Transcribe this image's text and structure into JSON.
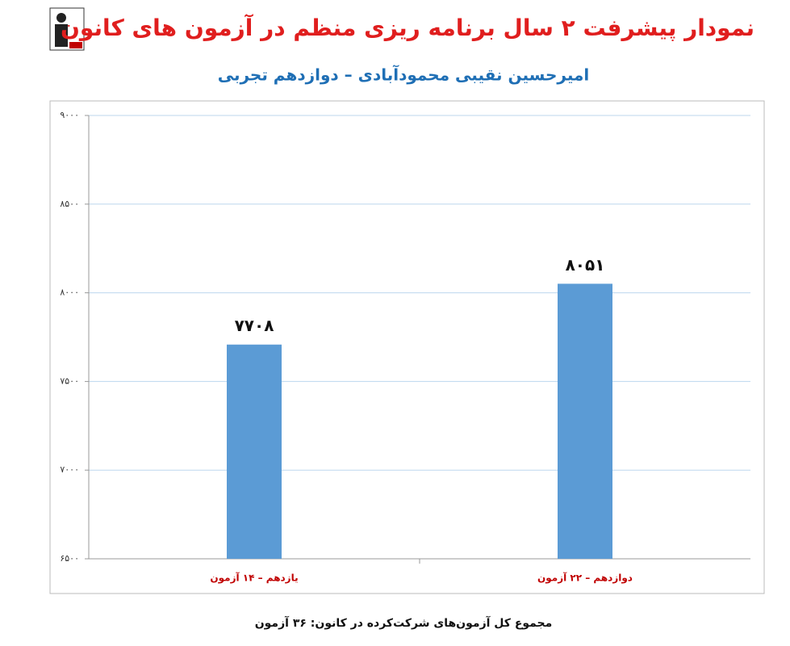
{
  "chart_data": {
    "type": "bar",
    "title": "نمودار پیشرفت ۲ سال برنامه ریزی منظم در آزمون های کانون",
    "subtitle": "امیرحسین نقیبی محمودآبادی – دوازدهم تجربی",
    "categories": [
      "یازدهم – ۱۴ آزمون",
      "دوازدهم – ۲۲ آزمون"
    ],
    "values": [
      7708,
      8051
    ],
    "value_labels": [
      "۷۷۰۸",
      "۸۰۵۱"
    ],
    "color": "#5b9bd5",
    "ylim": [
      6500,
      9000
    ],
    "yticks": [
      {
        "value": 6500,
        "label": "۶۵۰۰"
      },
      {
        "value": 7000,
        "label": "۷۰۰۰"
      },
      {
        "value": 7500,
        "label": "۷۵۰۰"
      },
      {
        "value": 8000,
        "label": "۸۰۰۰"
      },
      {
        "value": 8500,
        "label": "۸۵۰۰"
      },
      {
        "value": 9000,
        "label": "۹۰۰۰"
      }
    ],
    "grid": true,
    "footer": "مجموع کل آزمون‌های شرکت‌کرده در کانون: ۳۶ آزمون"
  }
}
